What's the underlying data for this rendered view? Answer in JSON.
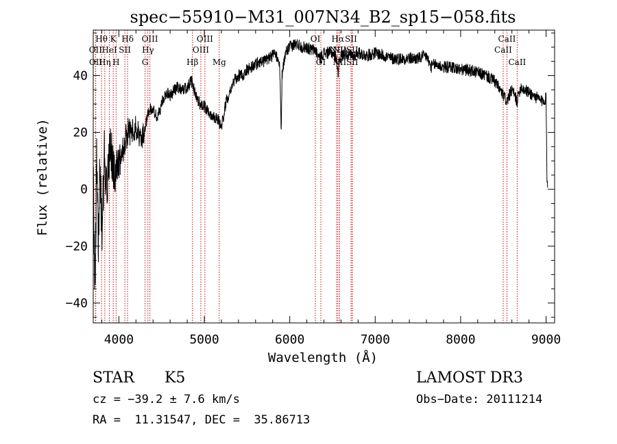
{
  "chart_data": {
    "type": "line",
    "title": "spec−55910−M31_007N34_B2_sp15−058.fits",
    "xlabel": "Wavelength (Å)",
    "ylabel": "Flux (relative)",
    "xlim": [
      3700,
      9100
    ],
    "ylim": [
      -47,
      56
    ],
    "x_ticks": [
      4000,
      5000,
      6000,
      7000,
      8000,
      9000
    ],
    "x_tick_labels": [
      "4000",
      "5000",
      "6000",
      "7000",
      "8000",
      "9000"
    ],
    "y_ticks": [
      -40,
      -20,
      0,
      20,
      40
    ],
    "y_tick_labels": [
      "−40",
      "−20",
      "0",
      "20",
      "40"
    ],
    "x_minor_step": 200,
    "y_minor_step": 5,
    "series": [
      {
        "name": "flux",
        "anchors": [
          [
            3700,
            5
          ],
          [
            3720,
            -35
          ],
          [
            3740,
            10
          ],
          [
            3760,
            -20
          ],
          [
            3780,
            8
          ],
          [
            3800,
            -15
          ],
          [
            3830,
            12
          ],
          [
            3860,
            0
          ],
          [
            3900,
            15
          ],
          [
            3950,
            5
          ],
          [
            4000,
            10
          ],
          [
            4050,
            15
          ],
          [
            4100,
            20
          ],
          [
            4150,
            20
          ],
          [
            4200,
            22
          ],
          [
            4250,
            18
          ],
          [
            4300,
            20
          ],
          [
            4350,
            28
          ],
          [
            4400,
            28
          ],
          [
            4450,
            25
          ],
          [
            4500,
            30
          ],
          [
            4550,
            34
          ],
          [
            4600,
            33
          ],
          [
            4650,
            35
          ],
          [
            4700,
            36
          ],
          [
            4750,
            35
          ],
          [
            4800,
            36
          ],
          [
            4850,
            38
          ],
          [
            4900,
            33
          ],
          [
            4950,
            30
          ],
          [
            5000,
            29
          ],
          [
            5050,
            27
          ],
          [
            5100,
            26
          ],
          [
            5150,
            25
          ],
          [
            5200,
            22
          ],
          [
            5250,
            30
          ],
          [
            5300,
            35
          ],
          [
            5350,
            38
          ],
          [
            5400,
            40
          ],
          [
            5450,
            40
          ],
          [
            5500,
            42
          ],
          [
            5550,
            43
          ],
          [
            5600,
            44
          ],
          [
            5650,
            45
          ],
          [
            5700,
            45
          ],
          [
            5750,
            46
          ],
          [
            5800,
            47
          ],
          [
            5850,
            47
          ],
          [
            5880,
            45
          ],
          [
            5893,
            30
          ],
          [
            5900,
            20
          ],
          [
            5910,
            40
          ],
          [
            5950,
            48
          ],
          [
            6000,
            50
          ],
          [
            6050,
            51
          ],
          [
            6100,
            51
          ],
          [
            6150,
            50
          ],
          [
            6200,
            50
          ],
          [
            6250,
            49
          ],
          [
            6300,
            49
          ],
          [
            6350,
            46
          ],
          [
            6400,
            48
          ],
          [
            6450,
            48
          ],
          [
            6500,
            48
          ],
          [
            6550,
            46
          ],
          [
            6563,
            40
          ],
          [
            6580,
            46
          ],
          [
            6650,
            48
          ],
          [
            6700,
            47
          ],
          [
            6750,
            47
          ],
          [
            6800,
            48
          ],
          [
            6900,
            47
          ],
          [
            7000,
            48
          ],
          [
            7100,
            47
          ],
          [
            7200,
            46
          ],
          [
            7300,
            46
          ],
          [
            7400,
            46
          ],
          [
            7500,
            46
          ],
          [
            7600,
            47
          ],
          [
            7650,
            43
          ],
          [
            7700,
            44
          ],
          [
            7800,
            43
          ],
          [
            7900,
            43
          ],
          [
            8000,
            42
          ],
          [
            8100,
            42
          ],
          [
            8200,
            41
          ],
          [
            8300,
            40
          ],
          [
            8400,
            38
          ],
          [
            8498,
            33
          ],
          [
            8542,
            31
          ],
          [
            8600,
            35
          ],
          [
            8662,
            31
          ],
          [
            8700,
            36
          ],
          [
            8750,
            35
          ],
          [
            8800,
            34
          ],
          [
            8850,
            33
          ],
          [
            8900,
            32
          ],
          [
            8950,
            31
          ],
          [
            9000,
            32
          ],
          [
            9010,
            5
          ],
          [
            9020,
            0
          ]
        ],
        "noise_amplitude": 2.2,
        "blue_noise_amplitude": 9
      }
    ],
    "line_markers": [
      {
        "label": "Hθ",
        "x": 3797,
        "row": 0
      },
      {
        "label": "K",
        "x": 3934,
        "row": 0
      },
      {
        "label": "Hδ",
        "x": 4102,
        "row": 0
      },
      {
        "label": "OIII",
        "x": 4363,
        "row": 0
      },
      {
        "label": "OIII",
        "x": 5007,
        "row": 0
      },
      {
        "label": "OI",
        "x": 6300,
        "row": 0
      },
      {
        "label": "Hα",
        "x": 6563,
        "row": 0
      },
      {
        "label": "SII",
        "x": 6717,
        "row": 0
      },
      {
        "label": "CaII",
        "x": 8542,
        "row": 0
      },
      {
        "label": "OII",
        "x": 3727,
        "row": 1
      },
      {
        "label": "HeI",
        "x": 3889,
        "row": 1
      },
      {
        "label": "SII",
        "x": 4070,
        "row": 1
      },
      {
        "label": "Hγ",
        "x": 4340,
        "row": 1
      },
      {
        "label": "OIII",
        "x": 4959,
        "row": 1
      },
      {
        "label": "NII",
        "x": 6548,
        "row": 1
      },
      {
        "label": "NII",
        "x": 6583,
        "row": 1
      },
      {
        "label": "SII",
        "x": 6731,
        "row": 1
      },
      {
        "label": "CaII",
        "x": 8498,
        "row": 1
      },
      {
        "label": "OII",
        "x": 3729,
        "row": 2
      },
      {
        "label": "Hη",
        "x": 3835,
        "row": 2
      },
      {
        "label": "H",
        "x": 3968,
        "row": 2
      },
      {
        "label": "G",
        "x": 4307,
        "row": 2
      },
      {
        "label": "Hβ",
        "x": 4861,
        "row": 2
      },
      {
        "label": "Mg",
        "x": 5175,
        "row": 2
      },
      {
        "label": "OI",
        "x": 6364,
        "row": 2
      },
      {
        "label": "NII",
        "x": 6583,
        "row": 2
      },
      {
        "label": "SII",
        "x": 6731,
        "row": 2
      },
      {
        "label": "CaII",
        "x": 8662,
        "row": 2
      }
    ],
    "marker_color": "#cc0000"
  },
  "info": {
    "class": "STAR",
    "subclass": "K5",
    "survey": "LAMOST DR3",
    "redshift": "cz = −39.2 ± 7.6 km/s",
    "obs_date": "Obs−Date: 20111214",
    "coords": "RA =  11.31547, DEC =  35.86713"
  }
}
